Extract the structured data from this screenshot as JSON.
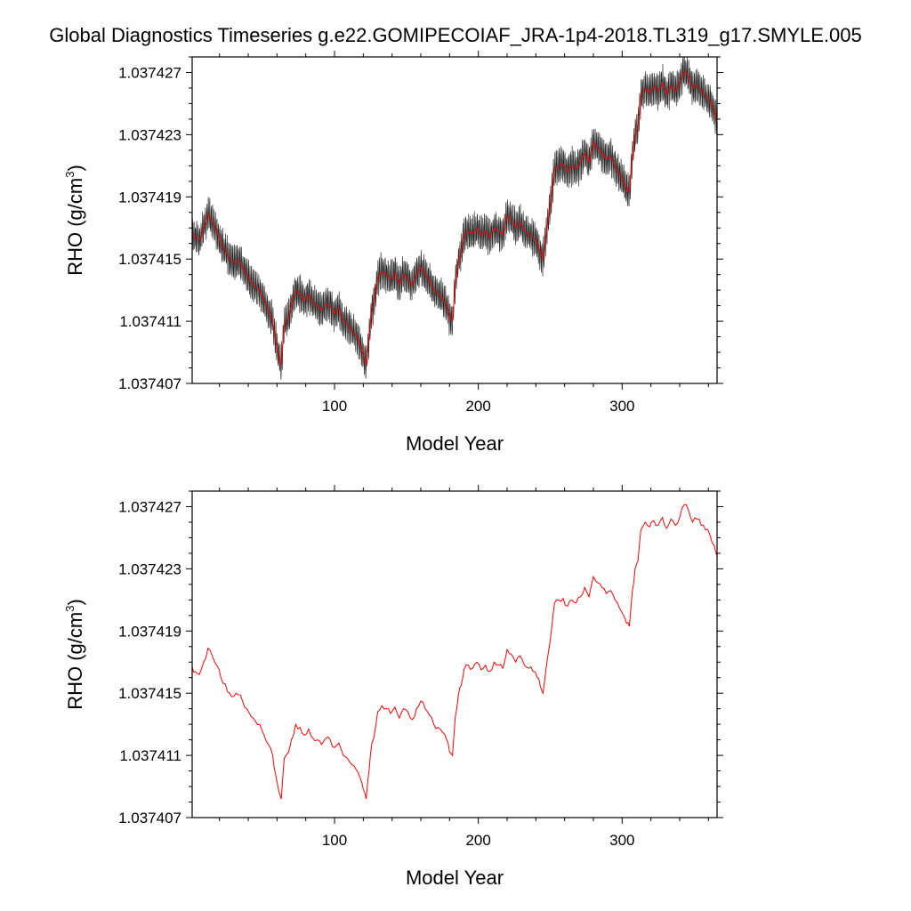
{
  "title": "Global Diagnostics Timeseries g.e22.GOMIPECOIAF_JRA-1p4-2018.TL319_g17.SMYLE.005",
  "colors": {
    "background": "#ffffff",
    "axes": "#000000",
    "monthly_line": "#000000",
    "mean_line": "#ff0000"
  },
  "chart_data": [
    {
      "type": "line",
      "xlabel": "Model Year",
      "ylabel_main": "RHO (g/cm",
      "ylabel_sup": "3",
      "ylabel_close": ")",
      "xlim": [
        1,
        366
      ],
      "ylim": [
        1.037407,
        1.037428
      ],
      "xticks": [
        100,
        200,
        300
      ],
      "xtick_labels": [
        "100",
        "200",
        "300"
      ],
      "yticks": [
        1.037407,
        1.037411,
        1.037415,
        1.037419,
        1.037423,
        1.037427
      ],
      "ytick_labels": [
        "1.037407",
        "1.037411",
        "1.037415",
        "1.037419",
        "1.037423",
        "1.037427"
      ],
      "grid": false,
      "legend": "none",
      "monthly_amplitude": 1.1e-06,
      "series": [
        {
          "style": "monthly",
          "color": "#000000",
          "x": [
            1,
            3,
            6,
            9,
            12,
            15,
            18,
            21,
            24,
            27,
            30,
            33,
            36,
            39,
            42,
            45,
            48,
            51,
            54,
            57,
            59,
            61,
            63,
            65,
            68,
            70,
            73,
            76,
            79,
            82,
            85,
            88,
            91,
            94,
            97,
            100,
            103,
            106,
            109,
            112,
            115,
            118,
            120,
            122,
            124,
            126,
            128,
            130,
            133,
            136,
            139,
            142,
            145,
            148,
            151,
            154,
            157,
            160,
            163,
            166,
            169,
            172,
            175,
            178,
            180,
            182,
            184,
            186,
            188,
            190,
            193,
            196,
            199,
            202,
            205,
            208,
            211,
            214,
            217,
            220,
            223,
            226,
            229,
            232,
            235,
            238,
            241,
            243,
            245,
            247,
            249,
            251,
            253,
            256,
            259,
            262,
            265,
            268,
            271,
            274,
            277,
            280,
            283,
            286,
            289,
            292,
            295,
            298,
            301,
            303,
            305,
            307,
            309,
            311,
            313,
            316,
            319,
            322,
            325,
            328,
            331,
            334,
            337,
            340,
            343,
            346,
            349,
            352,
            355,
            358,
            361,
            364,
            366
          ],
          "y": [
            1.0374167,
            1.0374164,
            1.0374162,
            1.037417,
            1.0374179,
            1.0374174,
            1.0374168,
            1.037416,
            1.0374156,
            1.037415,
            1.0374148,
            1.0374149,
            1.0374145,
            1.037414,
            1.0374135,
            1.0374132,
            1.037413,
            1.0374123,
            1.0374117,
            1.037411,
            1.0374098,
            1.0374088,
            1.0374082,
            1.0374108,
            1.0374112,
            1.037412,
            1.037413,
            1.0374128,
            1.0374123,
            1.0374127,
            1.0374121,
            1.037412,
            1.0374117,
            1.0374121,
            1.037412,
            1.0374115,
            1.0374118,
            1.037411,
            1.0374108,
            1.0374104,
            1.0374101,
            1.0374095,
            1.0374088,
            1.0374082,
            1.03741,
            1.0374118,
            1.0374125,
            1.0374138,
            1.0374142,
            1.037414,
            1.0374137,
            1.0374141,
            1.0374134,
            1.037414,
            1.0374138,
            1.0374133,
            1.037414,
            1.0374145,
            1.037414,
            1.0374136,
            1.037413,
            1.0374128,
            1.0374125,
            1.037412,
            1.0374112,
            1.037411,
            1.0374135,
            1.0374148,
            1.0374155,
            1.0374165,
            1.0374168,
            1.0374166,
            1.037417,
            1.0374165,
            1.0374168,
            1.0374164,
            1.037417,
            1.0374168,
            1.0374166,
            1.0374178,
            1.0374175,
            1.037417,
            1.0374174,
            1.0374168,
            1.0374166,
            1.0374164,
            1.037416,
            1.0374155,
            1.037415,
            1.0374165,
            1.0374178,
            1.0374192,
            1.0374208,
            1.037421,
            1.0374211,
            1.0374206,
            1.037421,
            1.0374208,
            1.0374212,
            1.0374218,
            1.0374212,
            1.0374225,
            1.0374221,
            1.0374218,
            1.0374214,
            1.0374216,
            1.037421,
            1.0374205,
            1.03742,
            1.0374195,
            1.0374193,
            1.0374215,
            1.037423,
            1.0374235,
            1.0374255,
            1.037426,
            1.0374257,
            1.0374261,
            1.0374258,
            1.0374263,
            1.0374256,
            1.0374262,
            1.0374258,
            1.0374263,
            1.0374271,
            1.0374268,
            1.037426,
            1.0374262,
            1.0374258,
            1.0374255,
            1.0374252,
            1.0374245,
            1.0374238
          ]
        }
      ]
    },
    {
      "type": "line",
      "xlabel": "Model Year",
      "ylabel_main": "RHO (g/cm",
      "ylabel_sup": "3",
      "ylabel_close": ")",
      "xlim": [
        1,
        366
      ],
      "ylim": [
        1.037407,
        1.037428
      ],
      "xticks": [
        100,
        200,
        300
      ],
      "xtick_labels": [
        "100",
        "200",
        "300"
      ],
      "yticks": [
        1.037407,
        1.037411,
        1.037415,
        1.037419,
        1.037423,
        1.037427
      ],
      "ytick_labels": [
        "1.037407",
        "1.037411",
        "1.037415",
        "1.037419",
        "1.037423",
        "1.037427"
      ],
      "grid": false,
      "legend": "none",
      "series": [
        {
          "style": "line",
          "color": "#ff0000",
          "x": [
            1,
            3,
            6,
            9,
            12,
            15,
            18,
            21,
            24,
            27,
            30,
            33,
            36,
            39,
            42,
            45,
            48,
            51,
            54,
            57,
            59,
            61,
            63,
            65,
            68,
            70,
            73,
            76,
            79,
            82,
            85,
            88,
            91,
            94,
            97,
            100,
            103,
            106,
            109,
            112,
            115,
            118,
            120,
            122,
            124,
            126,
            128,
            130,
            133,
            136,
            139,
            142,
            145,
            148,
            151,
            154,
            157,
            160,
            163,
            166,
            169,
            172,
            175,
            178,
            180,
            182,
            184,
            186,
            188,
            190,
            193,
            196,
            199,
            202,
            205,
            208,
            211,
            214,
            217,
            220,
            223,
            226,
            229,
            232,
            235,
            238,
            241,
            243,
            245,
            247,
            249,
            251,
            253,
            256,
            259,
            262,
            265,
            268,
            271,
            274,
            277,
            280,
            283,
            286,
            289,
            292,
            295,
            298,
            301,
            303,
            305,
            307,
            309,
            311,
            313,
            316,
            319,
            322,
            325,
            328,
            331,
            334,
            337,
            340,
            343,
            346,
            349,
            352,
            355,
            358,
            361,
            364,
            366
          ],
          "y": [
            1.0374167,
            1.0374164,
            1.0374162,
            1.037417,
            1.0374179,
            1.0374174,
            1.0374168,
            1.037416,
            1.0374156,
            1.037415,
            1.0374148,
            1.0374149,
            1.0374145,
            1.037414,
            1.0374135,
            1.0374132,
            1.037413,
            1.0374123,
            1.0374117,
            1.037411,
            1.0374098,
            1.0374088,
            1.0374082,
            1.0374108,
            1.0374112,
            1.037412,
            1.037413,
            1.0374128,
            1.0374123,
            1.0374127,
            1.0374121,
            1.037412,
            1.0374117,
            1.0374121,
            1.037412,
            1.0374115,
            1.0374118,
            1.037411,
            1.0374108,
            1.0374104,
            1.0374101,
            1.0374095,
            1.0374088,
            1.0374082,
            1.03741,
            1.0374118,
            1.0374125,
            1.0374138,
            1.0374142,
            1.037414,
            1.0374137,
            1.0374141,
            1.0374134,
            1.037414,
            1.0374138,
            1.0374133,
            1.037414,
            1.0374145,
            1.037414,
            1.0374136,
            1.037413,
            1.0374128,
            1.0374125,
            1.037412,
            1.0374112,
            1.037411,
            1.0374135,
            1.0374148,
            1.0374155,
            1.0374165,
            1.0374168,
            1.0374166,
            1.037417,
            1.0374165,
            1.0374168,
            1.0374164,
            1.037417,
            1.0374168,
            1.0374166,
            1.0374178,
            1.0374175,
            1.037417,
            1.0374174,
            1.0374168,
            1.0374166,
            1.0374164,
            1.037416,
            1.0374155,
            1.037415,
            1.0374165,
            1.0374178,
            1.0374192,
            1.0374208,
            1.037421,
            1.0374211,
            1.0374206,
            1.037421,
            1.0374208,
            1.0374212,
            1.0374218,
            1.0374212,
            1.0374225,
            1.0374221,
            1.0374218,
            1.0374214,
            1.0374216,
            1.037421,
            1.0374205,
            1.03742,
            1.0374195,
            1.0374193,
            1.0374215,
            1.037423,
            1.0374235,
            1.0374255,
            1.037426,
            1.0374257,
            1.0374261,
            1.0374258,
            1.0374263,
            1.0374256,
            1.0374262,
            1.0374258,
            1.0374263,
            1.0374271,
            1.0374268,
            1.037426,
            1.0374262,
            1.0374258,
            1.0374255,
            1.0374252,
            1.0374245,
            1.0374238
          ]
        }
      ]
    }
  ]
}
